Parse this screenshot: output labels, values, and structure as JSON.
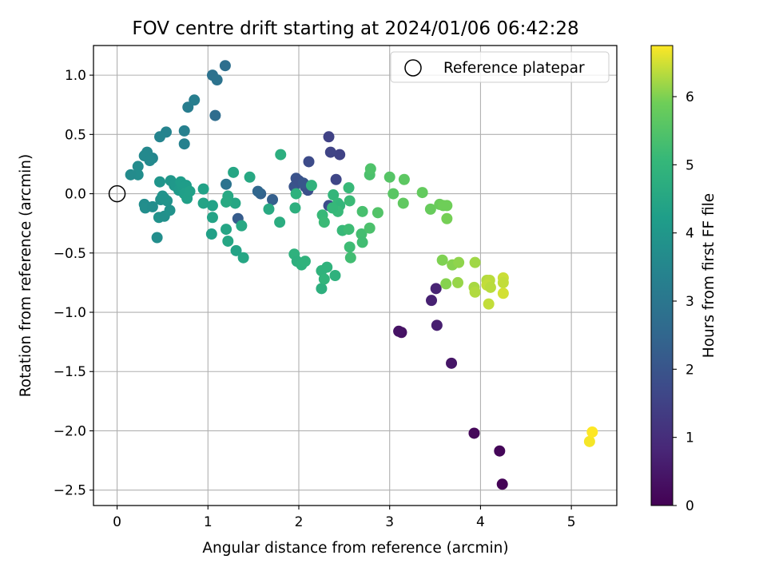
{
  "chart_data": {
    "type": "scatter",
    "title": "FOV centre drift starting at 2024/01/06 06:42:28",
    "xlabel": "Angular distance from reference (arcmin)",
    "ylabel": "Rotation from reference (arcmin)",
    "xlim": [
      -0.26,
      5.5
    ],
    "ylim": [
      -2.63,
      1.25
    ],
    "xticks": [
      0,
      1,
      2,
      3,
      4,
      5
    ],
    "xtick_labels": [
      "0",
      "1",
      "2",
      "3",
      "4",
      "5"
    ],
    "yticks": [
      1.0,
      0.5,
      0.0,
      -0.5,
      -1.0,
      -1.5,
      -2.0,
      -2.5
    ],
    "ytick_labels": [
      "1.0",
      "0.5",
      "0.0",
      "−0.5",
      "−1.0",
      "−1.5",
      "−2.0",
      "−2.5"
    ],
    "grid": true,
    "legend": {
      "position": "top-right",
      "entries": [
        "Reference platepar"
      ]
    },
    "reference_point": {
      "x": 0,
      "y": 0
    },
    "colorbar": {
      "label": "Hours from first FF file",
      "colormap": "viridis",
      "range": [
        0,
        6.75
      ],
      "ticks": [
        0,
        1,
        2,
        3,
        4,
        5,
        6
      ],
      "tick_labels": [
        "0",
        "1",
        "2",
        "3",
        "4",
        "5",
        "6"
      ]
    },
    "points": [
      {
        "x": 4.24,
        "y": -2.45,
        "h": 0.05
      },
      {
        "x": 4.21,
        "y": -2.17,
        "h": 0.1
      },
      {
        "x": 3.93,
        "y": -2.02,
        "h": 0.15
      },
      {
        "x": 3.68,
        "y": -1.43,
        "h": 0.45
      },
      {
        "x": 3.13,
        "y": -1.17,
        "h": 0.35
      },
      {
        "x": 3.1,
        "y": -1.16,
        "h": 0.4
      },
      {
        "x": 3.52,
        "y": -1.11,
        "h": 0.65
      },
      {
        "x": 3.46,
        "y": -0.9,
        "h": 0.7
      },
      {
        "x": 3.51,
        "y": -0.8,
        "h": 0.75
      },
      {
        "x": 2.45,
        "y": 0.33,
        "h": 1.5
      },
      {
        "x": 2.35,
        "y": 0.35,
        "h": 1.55
      },
      {
        "x": 2.33,
        "y": 0.48,
        "h": 1.5
      },
      {
        "x": 2.41,
        "y": 0.12,
        "h": 1.6
      },
      {
        "x": 2.11,
        "y": 0.27,
        "h": 1.75
      },
      {
        "x": 2.33,
        "y": -0.1,
        "h": 1.8
      },
      {
        "x": 2.1,
        "y": 0.03,
        "h": 1.85
      },
      {
        "x": 2.07,
        "y": 0.06,
        "h": 1.9
      },
      {
        "x": 1.97,
        "y": 0.13,
        "h": 1.95
      },
      {
        "x": 1.95,
        "y": 0.06,
        "h": 2.0
      },
      {
        "x": 2.0,
        "y": 0.11,
        "h": 1.9
      },
      {
        "x": 2.05,
        "y": 0.09,
        "h": 2.05
      },
      {
        "x": 1.33,
        "y": -0.21,
        "h": 2.2
      },
      {
        "x": 1.71,
        "y": -0.05,
        "h": 2.3
      },
      {
        "x": 1.58,
        "y": 0.0,
        "h": 2.4
      },
      {
        "x": 1.55,
        "y": 0.02,
        "h": 2.5
      },
      {
        "x": 1.08,
        "y": 0.66,
        "h": 2.7
      },
      {
        "x": 1.19,
        "y": 1.08,
        "h": 2.75
      },
      {
        "x": 1.05,
        "y": 1.0,
        "h": 2.85
      },
      {
        "x": 1.1,
        "y": 0.96,
        "h": 2.9
      },
      {
        "x": 1.2,
        "y": 0.08,
        "h": 2.9
      },
      {
        "x": 0.78,
        "y": 0.73,
        "h": 3.2
      },
      {
        "x": 0.85,
        "y": 0.79,
        "h": 3.25
      },
      {
        "x": 0.74,
        "y": 0.53,
        "h": 3.3
      },
      {
        "x": 0.74,
        "y": 0.42,
        "h": 3.35
      },
      {
        "x": 0.54,
        "y": 0.52,
        "h": 3.4
      },
      {
        "x": 0.47,
        "y": 0.48,
        "h": 3.45
      },
      {
        "x": 0.39,
        "y": 0.3,
        "h": 3.5
      },
      {
        "x": 0.33,
        "y": 0.35,
        "h": 3.55
      },
      {
        "x": 0.3,
        "y": 0.32,
        "h": 3.6
      },
      {
        "x": 0.36,
        "y": 0.28,
        "h": 3.6
      },
      {
        "x": 0.23,
        "y": 0.23,
        "h": 3.65
      },
      {
        "x": 0.23,
        "y": 0.16,
        "h": 3.7
      },
      {
        "x": 0.15,
        "y": 0.16,
        "h": 3.65
      },
      {
        "x": 0.3,
        "y": -0.09,
        "h": 3.7
      },
      {
        "x": 0.31,
        "y": -0.12,
        "h": 3.75
      },
      {
        "x": 0.39,
        "y": -0.11,
        "h": 3.7
      },
      {
        "x": 0.44,
        "y": -0.37,
        "h": 3.75
      },
      {
        "x": 0.48,
        "y": -0.05,
        "h": 3.8
      },
      {
        "x": 0.46,
        "y": -0.2,
        "h": 3.85
      },
      {
        "x": 0.52,
        "y": -0.19,
        "h": 3.8
      },
      {
        "x": 0.58,
        "y": -0.14,
        "h": 3.85
      },
      {
        "x": 0.55,
        "y": -0.06,
        "h": 3.9
      },
      {
        "x": 0.52,
        "y": -0.04,
        "h": 3.95
      },
      {
        "x": 0.5,
        "y": -0.02,
        "h": 3.9
      },
      {
        "x": 0.47,
        "y": 0.1,
        "h": 3.95
      },
      {
        "x": 0.59,
        "y": 0.11,
        "h": 4.0
      },
      {
        "x": 0.63,
        "y": 0.07,
        "h": 4.05
      },
      {
        "x": 0.68,
        "y": 0.03,
        "h": 4.1
      },
      {
        "x": 0.72,
        "y": 0.05,
        "h": 4.15
      },
      {
        "x": 0.7,
        "y": 0.1,
        "h": 4.2
      },
      {
        "x": 0.76,
        "y": 0.07,
        "h": 4.2
      },
      {
        "x": 0.74,
        "y": 0.0,
        "h": 4.25
      },
      {
        "x": 0.77,
        "y": -0.04,
        "h": 4.3
      },
      {
        "x": 0.8,
        "y": 0.02,
        "h": 4.3
      },
      {
        "x": 0.95,
        "y": 0.04,
        "h": 4.35
      },
      {
        "x": 0.95,
        "y": -0.08,
        "h": 4.4
      },
      {
        "x": 1.05,
        "y": -0.1,
        "h": 4.35
      },
      {
        "x": 1.05,
        "y": -0.2,
        "h": 4.4
      },
      {
        "x": 1.04,
        "y": -0.34,
        "h": 4.3
      },
      {
        "x": 1.2,
        "y": -0.3,
        "h": 4.45
      },
      {
        "x": 1.22,
        "y": -0.4,
        "h": 4.5
      },
      {
        "x": 1.31,
        "y": -0.48,
        "h": 4.4
      },
      {
        "x": 1.39,
        "y": -0.54,
        "h": 4.5
      },
      {
        "x": 1.37,
        "y": -0.27,
        "h": 4.55
      },
      {
        "x": 1.3,
        "y": -0.08,
        "h": 4.5
      },
      {
        "x": 1.22,
        "y": -0.02,
        "h": 4.55
      },
      {
        "x": 1.2,
        "y": -0.07,
        "h": 4.6
      },
      {
        "x": 1.28,
        "y": 0.18,
        "h": 4.5
      },
      {
        "x": 1.46,
        "y": 0.14,
        "h": 4.55
      },
      {
        "x": 1.67,
        "y": -0.13,
        "h": 4.6
      },
      {
        "x": 1.79,
        "y": -0.24,
        "h": 4.7
      },
      {
        "x": 1.8,
        "y": 0.33,
        "h": 4.75
      },
      {
        "x": 1.96,
        "y": -0.12,
        "h": 4.8
      },
      {
        "x": 1.97,
        "y": 0.0,
        "h": 4.85
      },
      {
        "x": 2.14,
        "y": 0.07,
        "h": 4.9
      },
      {
        "x": 1.95,
        "y": -0.51,
        "h": 4.85
      },
      {
        "x": 1.98,
        "y": -0.57,
        "h": 4.8
      },
      {
        "x": 2.03,
        "y": -0.6,
        "h": 4.85
      },
      {
        "x": 2.07,
        "y": -0.57,
        "h": 4.9
      },
      {
        "x": 2.25,
        "y": -0.65,
        "h": 4.9
      },
      {
        "x": 2.25,
        "y": -0.8,
        "h": 4.8
      },
      {
        "x": 2.28,
        "y": -0.72,
        "h": 4.95
      },
      {
        "x": 2.31,
        "y": -0.62,
        "h": 4.9
      },
      {
        "x": 2.4,
        "y": -0.69,
        "h": 4.85
      },
      {
        "x": 2.38,
        "y": -0.01,
        "h": 5.0
      },
      {
        "x": 2.43,
        "y": -0.08,
        "h": 5.05
      },
      {
        "x": 2.45,
        "y": -0.1,
        "h": 5.0
      },
      {
        "x": 2.43,
        "y": -0.15,
        "h": 5.1
      },
      {
        "x": 2.37,
        "y": -0.12,
        "h": 5.05
      },
      {
        "x": 2.26,
        "y": -0.18,
        "h": 5.1
      },
      {
        "x": 2.28,
        "y": -0.24,
        "h": 5.15
      },
      {
        "x": 2.48,
        "y": -0.31,
        "h": 5.1
      },
      {
        "x": 2.55,
        "y": -0.3,
        "h": 5.2
      },
      {
        "x": 2.56,
        "y": -0.06,
        "h": 5.15
      },
      {
        "x": 2.55,
        "y": 0.05,
        "h": 5.1
      },
      {
        "x": 2.56,
        "y": -0.45,
        "h": 5.2
      },
      {
        "x": 2.57,
        "y": -0.54,
        "h": 5.25
      },
      {
        "x": 2.69,
        "y": -0.34,
        "h": 5.3
      },
      {
        "x": 2.7,
        "y": -0.41,
        "h": 5.25
      },
      {
        "x": 2.7,
        "y": -0.15,
        "h": 5.35
      },
      {
        "x": 2.78,
        "y": 0.16,
        "h": 5.4
      },
      {
        "x": 2.79,
        "y": 0.21,
        "h": 5.45
      },
      {
        "x": 2.78,
        "y": -0.29,
        "h": 5.4
      },
      {
        "x": 2.87,
        "y": -0.16,
        "h": 5.5
      },
      {
        "x": 3.0,
        "y": 0.14,
        "h": 5.55
      },
      {
        "x": 3.04,
        "y": 0.0,
        "h": 5.6
      },
      {
        "x": 3.16,
        "y": 0.12,
        "h": 5.65
      },
      {
        "x": 3.15,
        "y": -0.08,
        "h": 5.7
      },
      {
        "x": 3.36,
        "y": 0.01,
        "h": 5.75
      },
      {
        "x": 3.45,
        "y": -0.13,
        "h": 5.8
      },
      {
        "x": 3.55,
        "y": -0.09,
        "h": 5.85
      },
      {
        "x": 3.59,
        "y": -0.1,
        "h": 5.9
      },
      {
        "x": 3.63,
        "y": -0.1,
        "h": 5.9
      },
      {
        "x": 3.63,
        "y": -0.21,
        "h": 5.95
      },
      {
        "x": 3.58,
        "y": -0.56,
        "h": 6.0
      },
      {
        "x": 3.69,
        "y": -0.6,
        "h": 6.05
      },
      {
        "x": 3.76,
        "y": -0.58,
        "h": 6.1
      },
      {
        "x": 3.62,
        "y": -0.76,
        "h": 6.05
      },
      {
        "x": 3.75,
        "y": -0.75,
        "h": 6.15
      },
      {
        "x": 3.94,
        "y": -0.58,
        "h": 6.2
      },
      {
        "x": 3.93,
        "y": -0.79,
        "h": 6.25
      },
      {
        "x": 3.94,
        "y": -0.83,
        "h": 6.3
      },
      {
        "x": 4.07,
        "y": -0.73,
        "h": 6.3
      },
      {
        "x": 4.1,
        "y": -0.73,
        "h": 6.35
      },
      {
        "x": 4.07,
        "y": -0.77,
        "h": 6.4
      },
      {
        "x": 4.11,
        "y": -0.79,
        "h": 6.35
      },
      {
        "x": 4.09,
        "y": -0.93,
        "h": 6.4
      },
      {
        "x": 4.25,
        "y": -0.71,
        "h": 6.45
      },
      {
        "x": 4.25,
        "y": -0.75,
        "h": 6.4
      },
      {
        "x": 4.25,
        "y": -0.84,
        "h": 6.5
      },
      {
        "x": 5.2,
        "y": -2.09,
        "h": 6.7
      },
      {
        "x": 5.23,
        "y": -2.01,
        "h": 6.75
      }
    ]
  }
}
